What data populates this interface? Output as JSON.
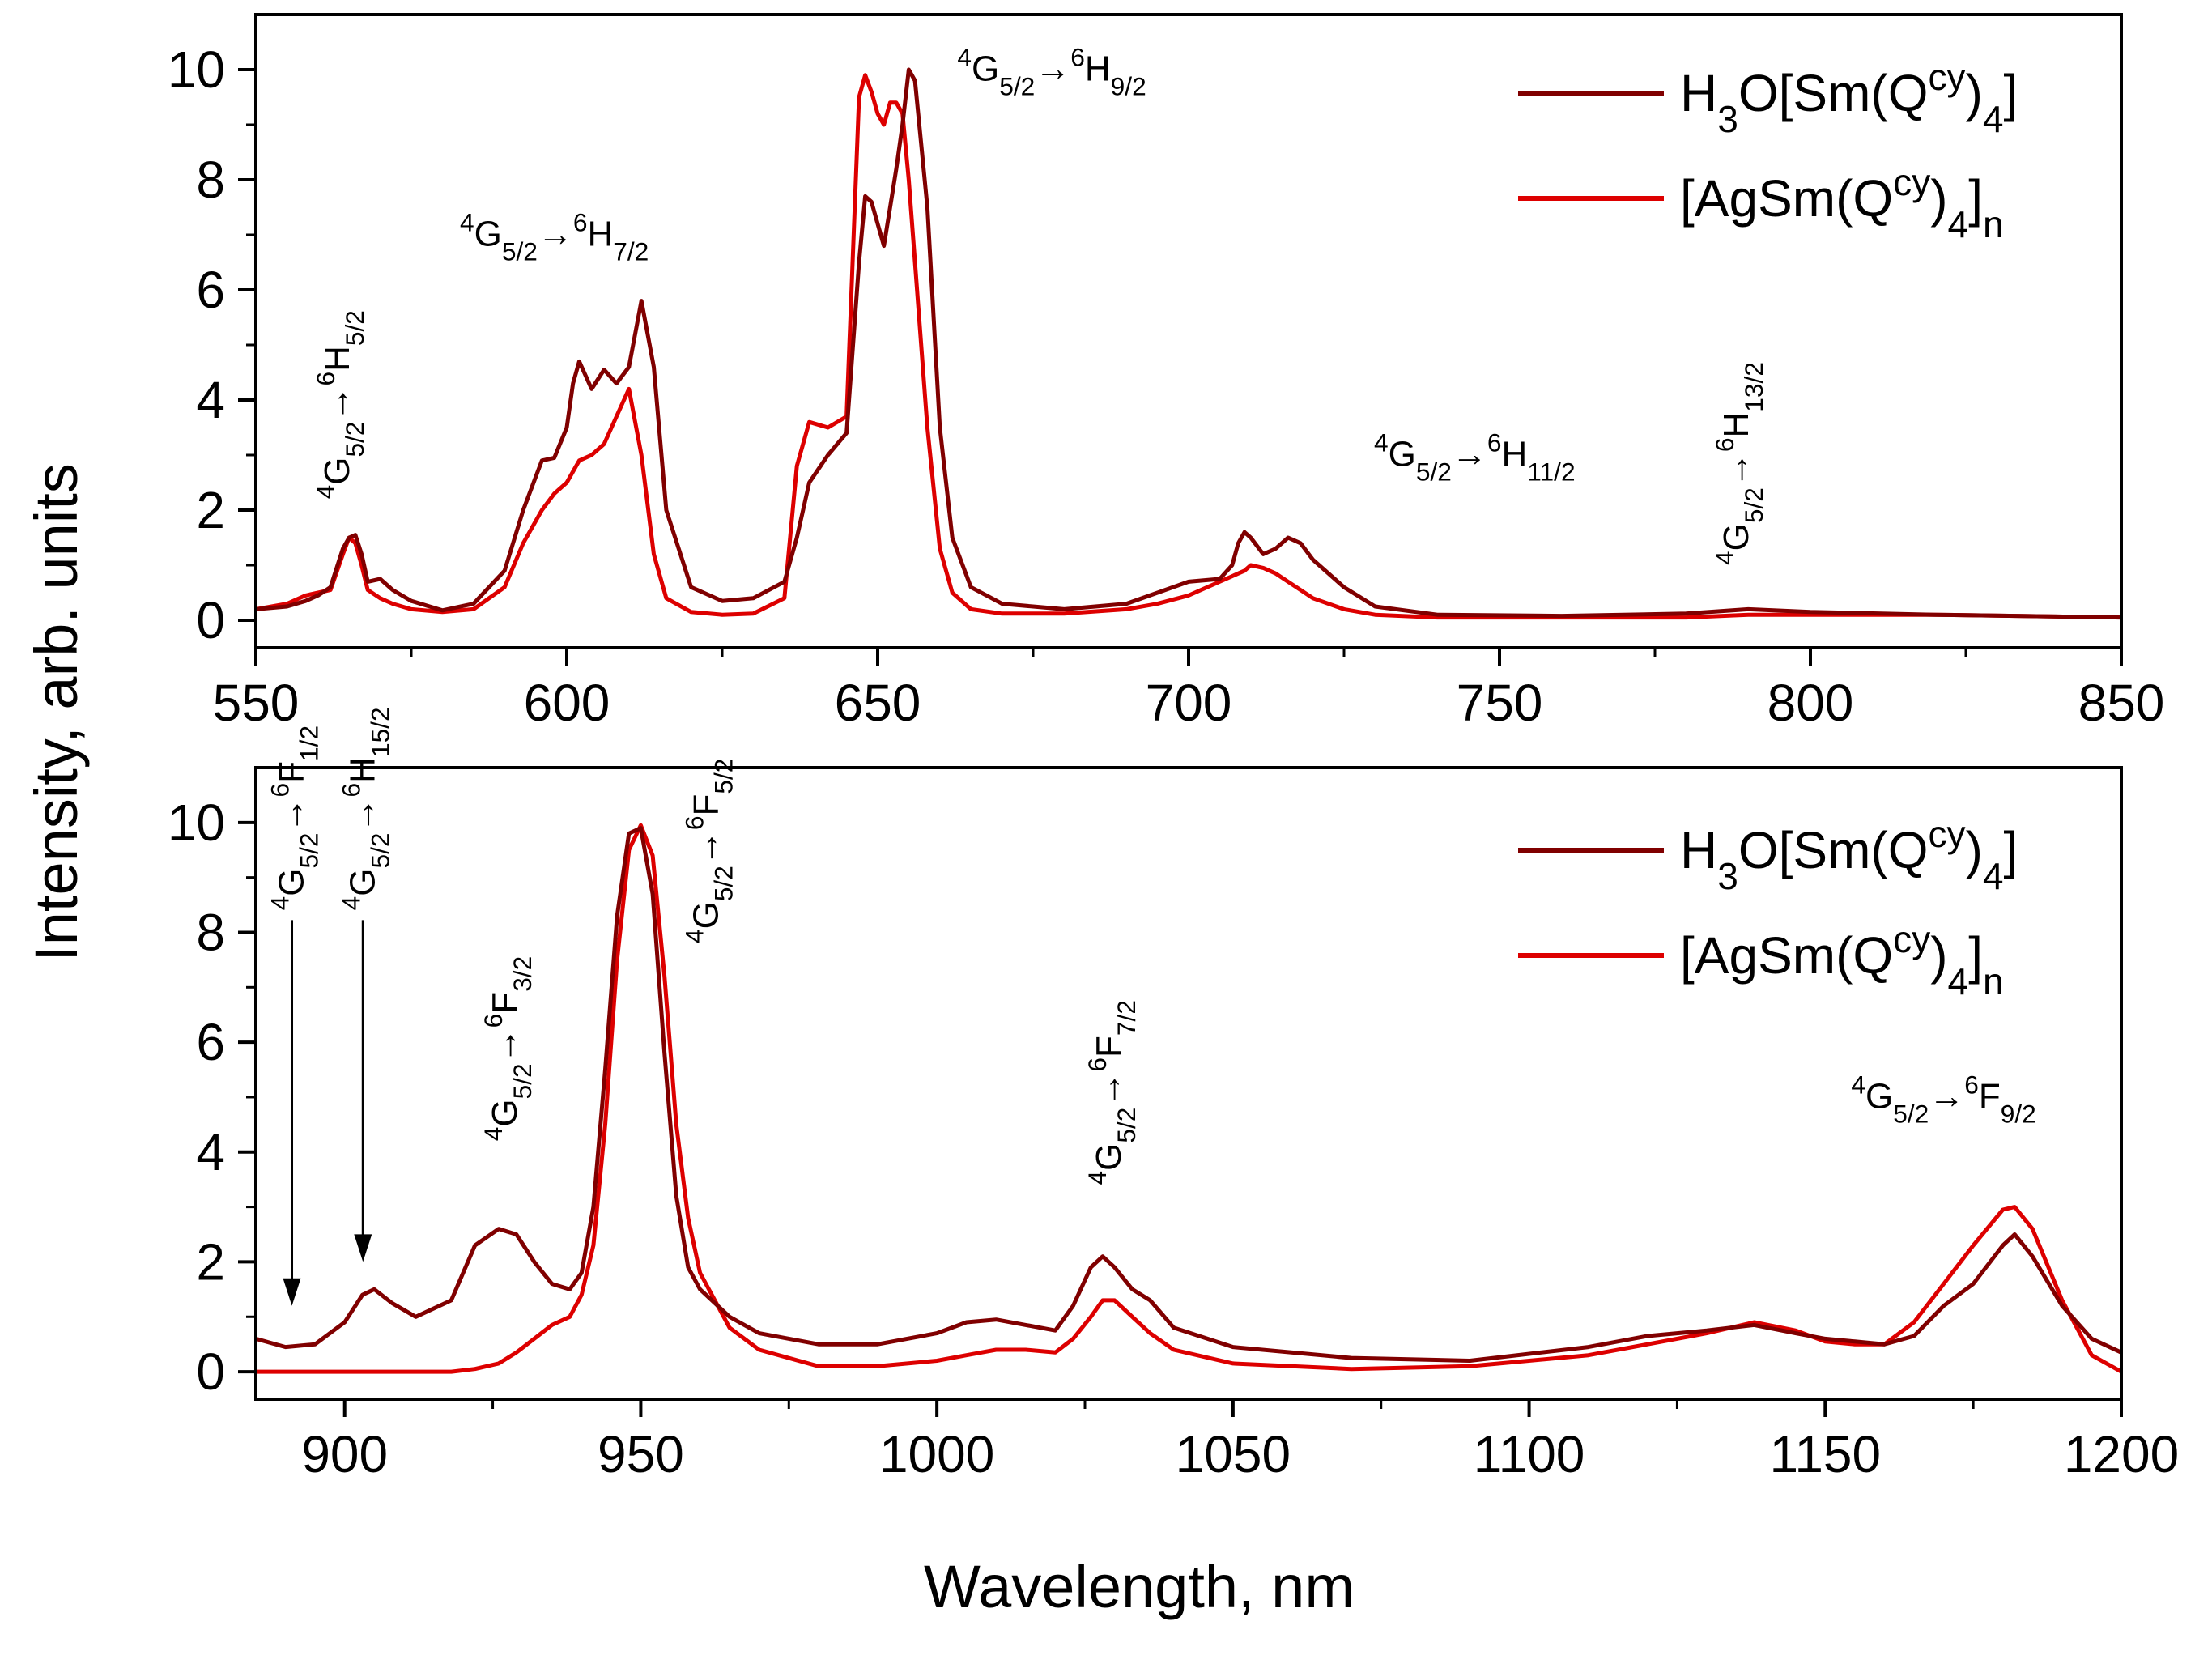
{
  "figure": {
    "ylabel": "Intensity, arb. units",
    "xlabel": "Wavelength, nm",
    "colors": {
      "dark": "#800000",
      "red": "#dd0000",
      "axis": "#000000"
    }
  },
  "legend_entries": [
    {
      "formula": "H3O[Sm(Qcy)4]",
      "series": "H3O[Sm(Qcy)4]"
    },
    {
      "formula": "[AgSm(Qcy)4]n",
      "series": "[AgSm(Qcy)4]n"
    }
  ],
  "chart_data": [
    {
      "type": "line",
      "panel": "top",
      "xlabel": "Wavelength, nm",
      "ylabel": "Intensity, arb. units",
      "xlim": [
        550,
        850
      ],
      "ylim": [
        -0.5,
        11
      ],
      "xticks": [
        550,
        600,
        650,
        700,
        750,
        800,
        850
      ],
      "yticks": [
        0,
        2,
        4,
        6,
        8,
        10
      ],
      "legend": "top-right",
      "grid": false,
      "series": [
        {
          "name": "H3O[Sm(Qcy)4]",
          "color": "#800000",
          "x": [
            550,
            555,
            558,
            560,
            562,
            564,
            565,
            566,
            567,
            568,
            570,
            572,
            575,
            580,
            585,
            590,
            593,
            596,
            598,
            600,
            601,
            602,
            604,
            606,
            608,
            610,
            612,
            614,
            616,
            620,
            625,
            630,
            635,
            637,
            639,
            642,
            645,
            647,
            648,
            649,
            650,
            651,
            652,
            653,
            654,
            655,
            656,
            658,
            660,
            662,
            665,
            670,
            675,
            680,
            690,
            695,
            700,
            705,
            707,
            708,
            709,
            710,
            712,
            714,
            716,
            718,
            720,
            725,
            730,
            740,
            760,
            780,
            790,
            800,
            820,
            850
          ],
          "values": [
            0.2,
            0.25,
            0.35,
            0.45,
            0.6,
            1.3,
            1.5,
            1.55,
            1.2,
            0.7,
            0.75,
            0.55,
            0.35,
            0.18,
            0.3,
            0.9,
            2.0,
            2.9,
            2.95,
            3.5,
            4.3,
            4.7,
            4.2,
            4.55,
            4.3,
            4.6,
            5.8,
            4.6,
            2.0,
            0.6,
            0.35,
            0.4,
            0.7,
            1.5,
            2.5,
            3.0,
            3.4,
            6.5,
            7.7,
            7.6,
            7.2,
            6.8,
            7.5,
            8.2,
            9.0,
            10.0,
            9.8,
            7.5,
            3.5,
            1.5,
            0.6,
            0.3,
            0.25,
            0.2,
            0.3,
            0.5,
            0.7,
            0.75,
            1.0,
            1.4,
            1.6,
            1.5,
            1.2,
            1.3,
            1.5,
            1.4,
            1.1,
            0.6,
            0.25,
            0.1,
            0.08,
            0.12,
            0.2,
            0.15,
            0.1,
            0.05
          ]
        },
        {
          "name": "[AgSm(Qcy)4]n",
          "color": "#dd0000",
          "x": [
            550,
            555,
            558,
            560,
            562,
            564,
            565,
            566,
            567,
            568,
            570,
            572,
            575,
            580,
            585,
            590,
            593,
            596,
            598,
            600,
            601,
            602,
            604,
            606,
            608,
            610,
            612,
            614,
            616,
            620,
            625,
            630,
            635,
            637,
            639,
            642,
            645,
            647,
            648,
            649,
            650,
            651,
            652,
            653,
            654,
            655,
            656,
            658,
            660,
            662,
            665,
            670,
            675,
            680,
            690,
            695,
            700,
            705,
            707,
            708,
            709,
            710,
            712,
            714,
            716,
            718,
            720,
            725,
            730,
            740,
            760,
            780,
            790,
            800,
            820,
            850
          ],
          "values": [
            0.2,
            0.3,
            0.45,
            0.5,
            0.55,
            1.2,
            1.5,
            1.4,
            1.0,
            0.55,
            0.4,
            0.3,
            0.2,
            0.15,
            0.2,
            0.6,
            1.4,
            2.0,
            2.3,
            2.5,
            2.7,
            2.9,
            3.0,
            3.2,
            3.7,
            4.2,
            3.0,
            1.2,
            0.4,
            0.15,
            0.1,
            0.12,
            0.4,
            2.8,
            3.6,
            3.5,
            3.7,
            9.5,
            9.9,
            9.6,
            9.2,
            9.0,
            9.4,
            9.4,
            9.2,
            8.0,
            6.5,
            3.5,
            1.3,
            0.5,
            0.2,
            0.12,
            0.12,
            0.12,
            0.2,
            0.3,
            0.45,
            0.7,
            0.8,
            0.85,
            0.9,
            1.0,
            0.95,
            0.85,
            0.7,
            0.55,
            0.4,
            0.2,
            0.1,
            0.05,
            0.05,
            0.05,
            0.1,
            0.1,
            0.1,
            0.05
          ]
        }
      ],
      "annotations": [
        {
          "x": 565,
          "y": 2.2,
          "ground": "4",
          "ground_sub": "5/2",
          "excited": "6",
          "excited_term": "H",
          "excited_sub": "5/2",
          "orientation": "vertical"
        },
        {
          "x": 598,
          "y": 6.8,
          "ground": "4",
          "ground_sub": "5/2",
          "excited": "6",
          "excited_term": "H",
          "excited_sub": "7/2",
          "orientation": "horizontal"
        },
        {
          "x": 678,
          "y": 9.8,
          "ground": "4",
          "ground_sub": "5/2",
          "excited": "6",
          "excited_term": "H",
          "excited_sub": "9/2",
          "orientation": "horizontal"
        },
        {
          "x": 746,
          "y": 2.8,
          "ground": "4",
          "ground_sub": "5/2",
          "excited": "6",
          "excited_term": "H",
          "excited_sub": "11/2",
          "orientation": "horizontal"
        },
        {
          "x": 790,
          "y": 1.0,
          "ground": "4",
          "ground_sub": "5/2",
          "excited": "6",
          "excited_term": "H",
          "excited_sub": "13/2",
          "orientation": "vertical"
        }
      ]
    },
    {
      "type": "line",
      "panel": "bottom",
      "xlabel": "Wavelength, nm",
      "ylabel": "Intensity, arb. units",
      "xlim": [
        885,
        1200
      ],
      "ylim": [
        -0.5,
        11
      ],
      "xticks": [
        900,
        950,
        1000,
        1050,
        1100,
        1150,
        1200
      ],
      "yticks": [
        0,
        2,
        4,
        6,
        8,
        10
      ],
      "legend": "top-right",
      "grid": false,
      "series": [
        {
          "name": "H3O[Sm(Qcy)4]",
          "color": "#800000",
          "x": [
            885,
            890,
            895,
            900,
            903,
            905,
            908,
            912,
            918,
            922,
            926,
            929,
            932,
            935,
            938,
            940,
            942,
            944,
            946,
            948,
            950,
            952,
            954,
            956,
            958,
            960,
            965,
            970,
            980,
            990,
            1000,
            1005,
            1010,
            1015,
            1020,
            1023,
            1026,
            1028,
            1030,
            1033,
            1036,
            1040,
            1050,
            1070,
            1090,
            1110,
            1120,
            1130,
            1138,
            1145,
            1150,
            1155,
            1160,
            1165,
            1170,
            1175,
            1180,
            1182,
            1185,
            1190,
            1195,
            1200
          ],
          "values": [
            0.6,
            0.45,
            0.5,
            0.9,
            1.4,
            1.5,
            1.25,
            1.0,
            1.3,
            2.3,
            2.6,
            2.5,
            2.0,
            1.6,
            1.5,
            1.8,
            3.0,
            5.5,
            8.3,
            9.8,
            9.9,
            8.7,
            5.8,
            3.2,
            1.9,
            1.5,
            1.0,
            0.7,
            0.5,
            0.5,
            0.7,
            0.9,
            0.95,
            0.85,
            0.75,
            1.2,
            1.9,
            2.1,
            1.9,
            1.5,
            1.3,
            0.8,
            0.45,
            0.25,
            0.2,
            0.45,
            0.65,
            0.75,
            0.85,
            0.7,
            0.6,
            0.55,
            0.5,
            0.65,
            1.2,
            1.6,
            2.3,
            2.5,
            2.1,
            1.2,
            0.6,
            0.35
          ]
        },
        {
          "name": "[AgSm(Qcy)4]n",
          "color": "#dd0000",
          "x": [
            885,
            890,
            895,
            900,
            903,
            905,
            908,
            912,
            918,
            922,
            926,
            929,
            932,
            935,
            938,
            940,
            942,
            944,
            946,
            948,
            950,
            952,
            954,
            956,
            958,
            960,
            965,
            970,
            980,
            990,
            1000,
            1005,
            1010,
            1015,
            1020,
            1023,
            1026,
            1028,
            1030,
            1033,
            1036,
            1040,
            1050,
            1070,
            1090,
            1110,
            1120,
            1130,
            1138,
            1145,
            1150,
            1155,
            1160,
            1165,
            1170,
            1175,
            1180,
            1182,
            1185,
            1190,
            1195,
            1200
          ],
          "values": [
            0,
            0,
            0,
            0,
            0,
            0,
            0,
            0,
            0,
            0.05,
            0.15,
            0.35,
            0.6,
            0.85,
            1.0,
            1.4,
            2.3,
            4.5,
            7.5,
            9.5,
            9.95,
            9.4,
            7.2,
            4.5,
            2.8,
            1.8,
            0.8,
            0.4,
            0.1,
            0.1,
            0.2,
            0.3,
            0.4,
            0.4,
            0.35,
            0.6,
            1.0,
            1.3,
            1.3,
            1.0,
            0.7,
            0.4,
            0.15,
            0.05,
            0.1,
            0.3,
            0.5,
            0.7,
            0.9,
            0.75,
            0.55,
            0.5,
            0.5,
            0.9,
            1.6,
            2.3,
            2.95,
            3.0,
            2.6,
            1.3,
            0.3,
            0
          ]
        }
      ],
      "annotations": [
        {
          "x": 893,
          "y": 8.4,
          "ground": "4",
          "ground_sub": "5/2",
          "excited": "6",
          "excited_term": "F",
          "excited_sub": "1/2",
          "orientation": "vertical",
          "arrow_to": 1.2
        },
        {
          "x": 905,
          "y": 8.4,
          "ground": "4",
          "ground_sub": "5/2",
          "excited": "6",
          "excited_term": "H",
          "excited_sub": "15/2",
          "orientation": "vertical",
          "arrow_to": 2.0
        },
        {
          "x": 929,
          "y": 4.2,
          "ground": "4",
          "ground_sub": "5/2",
          "excited": "6",
          "excited_term": "F",
          "excited_sub": "3/2",
          "orientation": "vertical"
        },
        {
          "x": 963,
          "y": 7.8,
          "ground": "4",
          "ground_sub": "5/2",
          "excited": "6",
          "excited_term": "F",
          "excited_sub": "5/2",
          "orientation": "vertical"
        },
        {
          "x": 1031,
          "y": 3.4,
          "ground": "4",
          "ground_sub": "5/2",
          "excited": "6",
          "excited_term": "F",
          "excited_sub": "7/2",
          "orientation": "vertical"
        },
        {
          "x": 1170,
          "y": 4.8,
          "ground": "4",
          "ground_sub": "5/2",
          "excited": "6",
          "excited_term": "F",
          "excited_sub": "9/2",
          "orientation": "horizontal"
        }
      ]
    }
  ]
}
